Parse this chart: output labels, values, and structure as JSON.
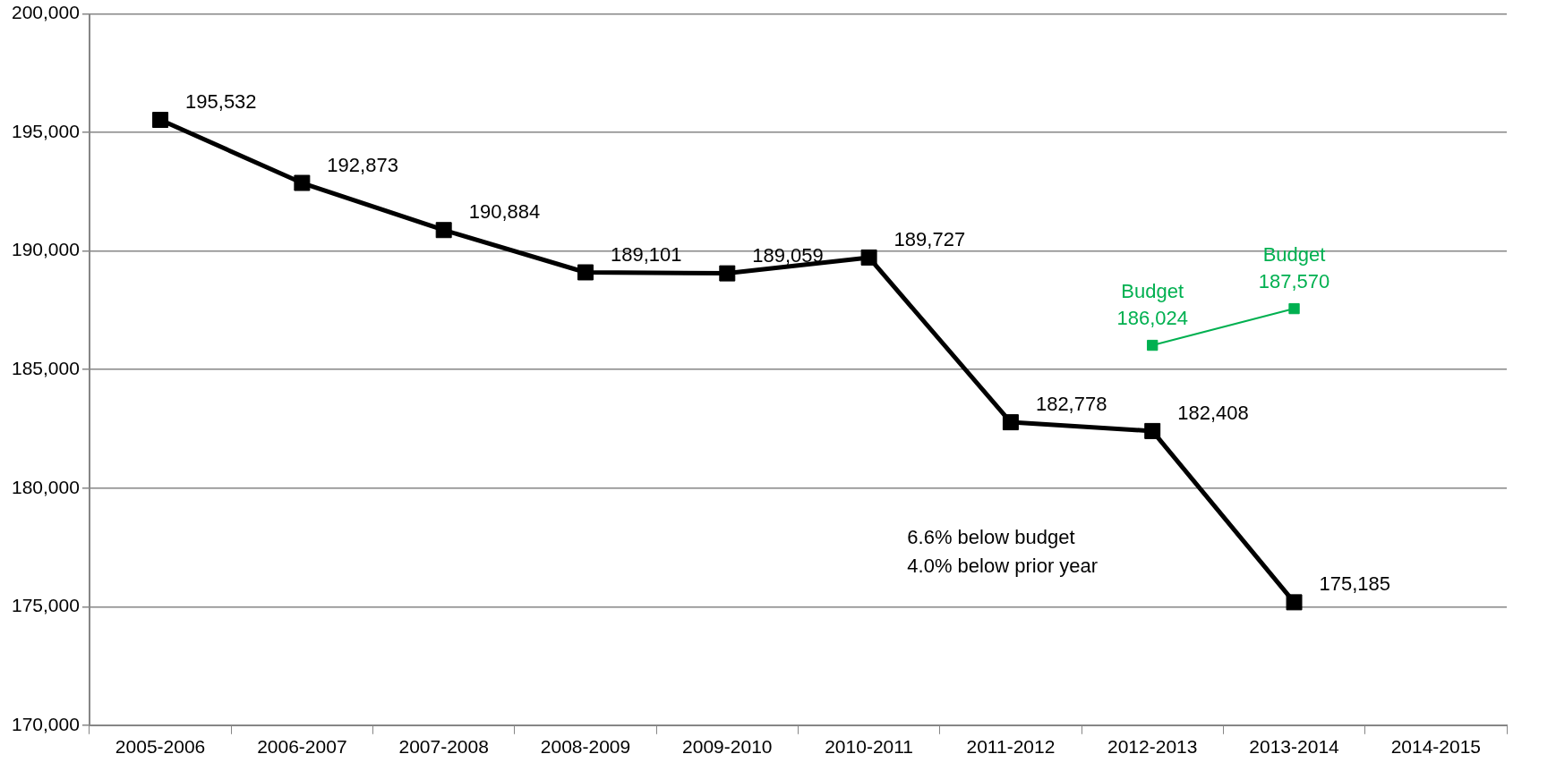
{
  "chart_data": {
    "type": "line",
    "categories": [
      "2005-2006",
      "2006-2007",
      "2007-2008",
      "2008-2009",
      "2009-2010",
      "2010-2011",
      "2011-2012",
      "2012-2013",
      "2013-2014",
      "2014-2015"
    ],
    "series": [
      {
        "color": "#000000",
        "values": [
          195532,
          192873,
          190884,
          189101,
          189059,
          189727,
          182778,
          182408,
          175185,
          null
        ],
        "value_labels": [
          "195,532",
          "192,873",
          "190,884",
          "189,101",
          "189,059",
          "189,727",
          "182,778",
          "182,408",
          "175,185",
          null
        ]
      },
      {
        "color": "#00b050",
        "values": [
          null,
          null,
          null,
          null,
          null,
          null,
          null,
          186024,
          187570,
          null
        ],
        "value_labels": [
          null,
          null,
          null,
          null,
          null,
          null,
          null,
          "Budget\n186,024",
          "Budget\n187,570",
          null
        ]
      }
    ],
    "ylim": [
      170000,
      200000
    ],
    "yticks": [
      {
        "value": 170000,
        "label": "170,000"
      },
      {
        "value": 175000,
        "label": "175,000"
      },
      {
        "value": 180000,
        "label": "180,000"
      },
      {
        "value": 185000,
        "label": "185,000"
      },
      {
        "value": 190000,
        "label": "190,000"
      },
      {
        "value": 195000,
        "label": "195,000"
      },
      {
        "value": 200000,
        "label": "200,000"
      }
    ],
    "grid": "y",
    "legend": false,
    "marker": "square",
    "line_style": "solid",
    "annotations": [
      "6.6% below budget",
      "4.0% below prior year"
    ]
  }
}
